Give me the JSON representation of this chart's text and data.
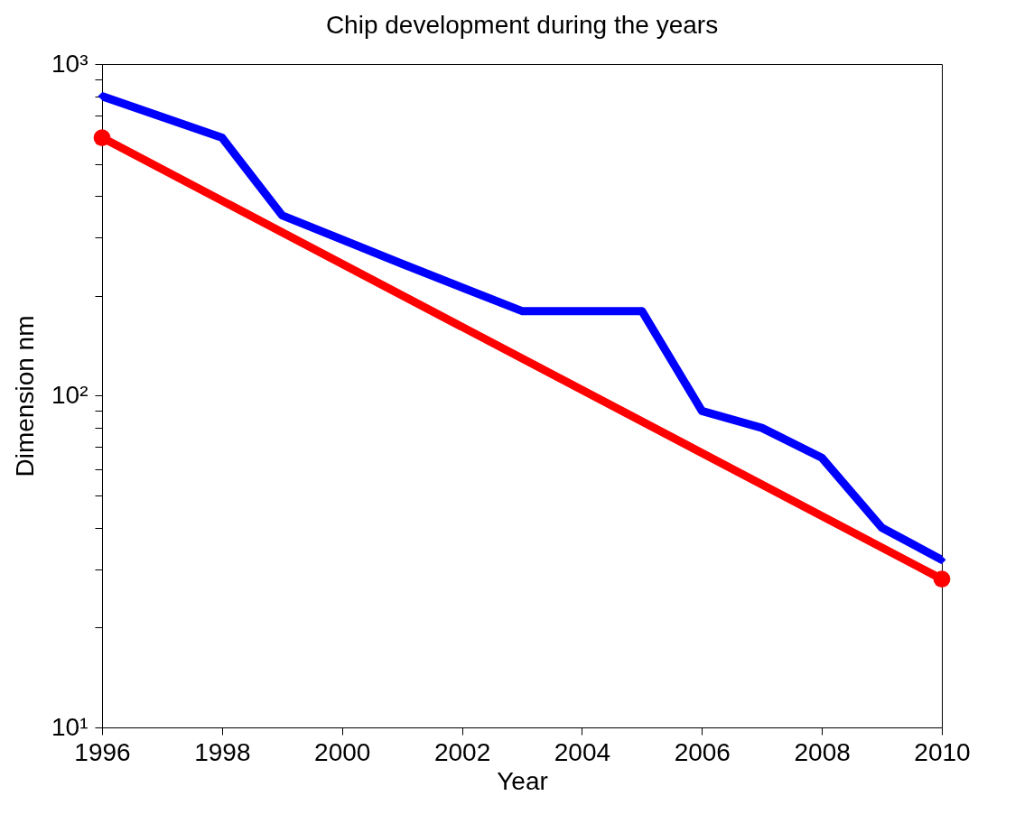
{
  "chart_data": {
    "type": "line",
    "title": "Chip development during the years",
    "xlabel": "Year",
    "ylabel": "Dimension nm",
    "log": "y",
    "grid": false,
    "xlim": [
      1996,
      2010
    ],
    "xticks": [
      1996,
      1998,
      2000,
      2002,
      2004,
      2006,
      2008,
      2010
    ],
    "ylim": [
      10,
      1000
    ],
    "yticks": [
      {
        "value": 10,
        "label": "10¹"
      },
      {
        "value": 20,
        "label": null
      },
      {
        "value": 30,
        "label": null
      },
      {
        "value": 40,
        "label": null
      },
      {
        "value": 50,
        "label": null
      },
      {
        "value": 60,
        "label": null
      },
      {
        "value": 70,
        "label": null
      },
      {
        "value": 80,
        "label": null
      },
      {
        "value": 90,
        "label": null
      },
      {
        "value": 100,
        "label": "10²"
      },
      {
        "value": 200,
        "label": null
      },
      {
        "value": 300,
        "label": null
      },
      {
        "value": 400,
        "label": null
      },
      {
        "value": 500,
        "label": null
      },
      {
        "value": 600,
        "label": null
      },
      {
        "value": 700,
        "label": null
      },
      {
        "value": 800,
        "label": null
      },
      {
        "value": 900,
        "label": null
      },
      {
        "value": 1000,
        "label": "10³"
      }
    ],
    "series": [
      {
        "color": "#0000ff",
        "marker": "diamond",
        "line_style": "solid",
        "x": [
          1996,
          1998,
          1999,
          2001,
          2003,
          2005,
          2006,
          2007,
          2008,
          2009,
          2010
        ],
        "values": [
          800,
          600,
          350,
          250,
          180,
          180,
          90,
          80,
          65,
          40,
          32
        ]
      },
      {
        "color": "#ff0000",
        "marker": "circle",
        "line_style": "solid",
        "x": [
          1996,
          2010
        ],
        "values": [
          600,
          28
        ]
      }
    ]
  }
}
